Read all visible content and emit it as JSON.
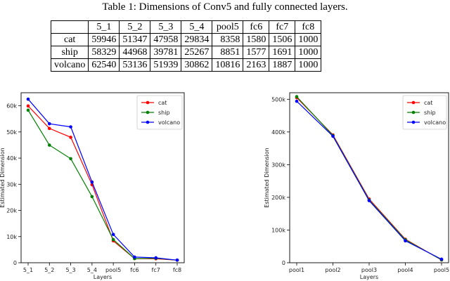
{
  "caption": "Table 1: Dimensions of Conv5 and fully connected layers.",
  "table": {
    "columns": [
      "5_1",
      "5_2",
      "5_3",
      "5_4",
      "pool5",
      "fc6",
      "fc7",
      "fc8"
    ],
    "rows": [
      {
        "label": "cat",
        "values": [
          "59946",
          "51347",
          "47958",
          "29834",
          "8358",
          "1580",
          "1506",
          "1000"
        ]
      },
      {
        "label": "ship",
        "values": [
          "58329",
          "44968",
          "39781",
          "25267",
          "8851",
          "1577",
          "1691",
          "1000"
        ]
      },
      {
        "label": "volcano",
        "values": [
          "62540",
          "53136",
          "51939",
          "30862",
          "10816",
          "2163",
          "1887",
          "1000"
        ]
      }
    ]
  },
  "chart_data": [
    {
      "type": "line",
      "title": "",
      "xlabel": "Layers",
      "ylabel": "Estimated Dimension",
      "categories": [
        "5_1",
        "5_2",
        "5_3",
        "5_4",
        "pool5",
        "fc6",
        "fc7",
        "fc8"
      ],
      "ylim": [
        0,
        65000
      ],
      "yticks": [
        0,
        10000,
        20000,
        30000,
        40000,
        50000,
        60000
      ],
      "ytick_labels": [
        "0",
        "10k",
        "20k",
        "30k",
        "40k",
        "50k",
        "60k"
      ],
      "legend_position": "top-right",
      "series": [
        {
          "name": "cat",
          "color": "#ff0000",
          "values": [
            59946,
            51347,
            47958,
            29834,
            8358,
            1580,
            1506,
            1000
          ]
        },
        {
          "name": "ship",
          "color": "#008000",
          "values": [
            58329,
            44968,
            39781,
            25267,
            8851,
            1577,
            1691,
            1000
          ]
        },
        {
          "name": "volcano",
          "color": "#0000ff",
          "values": [
            62540,
            53136,
            51939,
            30862,
            10816,
            2163,
            1887,
            1000
          ]
        }
      ]
    },
    {
      "type": "line",
      "title": "",
      "xlabel": "Layers",
      "ylabel": "Estimated Dimension",
      "categories": [
        "pool1",
        "pool2",
        "pool3",
        "pool4",
        "pool5"
      ],
      "ylim": [
        0,
        520000
      ],
      "yticks": [
        0,
        100000,
        200000,
        300000,
        400000,
        500000
      ],
      "ytick_labels": [
        "0",
        "100k",
        "200k",
        "300k",
        "400k",
        "500k"
      ],
      "legend_position": "top-right",
      "series": [
        {
          "name": "cat",
          "color": "#ff0000",
          "values": [
            505000,
            391000,
            195000,
            72000,
            8358
          ]
        },
        {
          "name": "ship",
          "color": "#008000",
          "values": [
            508000,
            389000,
            192000,
            70000,
            8851
          ]
        },
        {
          "name": "volcano",
          "color": "#0000ff",
          "values": [
            494000,
            387000,
            190000,
            67000,
            10816
          ]
        }
      ]
    }
  ]
}
